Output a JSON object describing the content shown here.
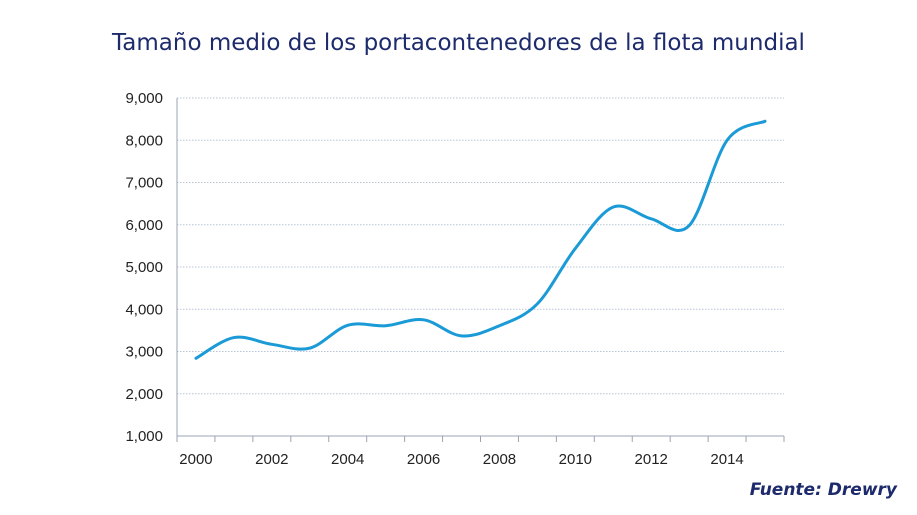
{
  "chart_data": {
    "type": "line",
    "title": "Tamaño medio de los portacontenedores de la flota mundial",
    "source": "Fuente: Drewry",
    "categories": [
      2000,
      2001,
      2002,
      2003,
      2004,
      2005,
      2006,
      2007,
      2008,
      2009,
      2010,
      2011,
      2012,
      2013,
      2014,
      2015
    ],
    "x_tick_labels": [
      "2000",
      "2002",
      "2004",
      "2006",
      "2008",
      "2010",
      "2012",
      "2014"
    ],
    "y_tick_labels": [
      "1,000",
      "2,000",
      "3,000",
      "4,000",
      "5,000",
      "6,000",
      "7,000",
      "8,000",
      "9,000"
    ],
    "values": [
      2840,
      3330,
      3170,
      3080,
      3620,
      3610,
      3750,
      3370,
      3610,
      4130,
      5440,
      6420,
      6140,
      5980,
      8000,
      8450
    ],
    "ylim": [
      1000,
      9000
    ],
    "grid": true,
    "line_color": "#1a9ad6",
    "title_color": "#1d2a6b"
  }
}
